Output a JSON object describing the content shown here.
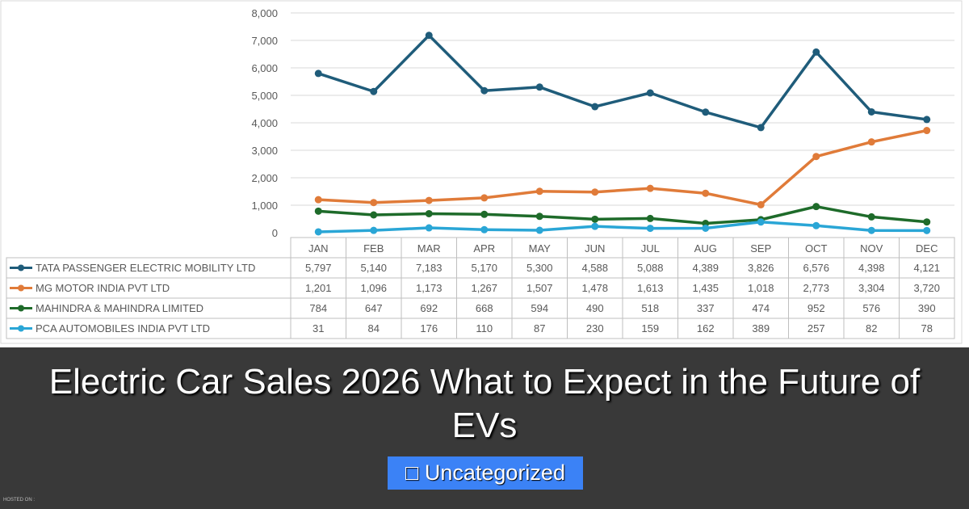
{
  "chart_data": {
    "type": "line",
    "categories": [
      "JAN",
      "FEB",
      "MAR",
      "APR",
      "MAY",
      "JUN",
      "JUL",
      "AUG",
      "SEP",
      "OCT",
      "NOV",
      "DEC"
    ],
    "ylim": [
      0,
      8000
    ],
    "yticks": [
      "0",
      "1,000",
      "2,000",
      "3,000",
      "4,000",
      "5,000",
      "6,000",
      "7,000",
      "8,000"
    ],
    "grid": true,
    "legend": "data-table-below",
    "series": [
      {
        "name": "TATA PASSENGER ELECTRIC MOBILITY LTD",
        "color": "#1f5c7a",
        "values": [
          5797,
          5140,
          7183,
          5170,
          5300,
          4588,
          5088,
          4389,
          3826,
          6576,
          4398,
          4121
        ],
        "labels": [
          "5,797",
          "5,140",
          "7,183",
          "5,170",
          "5,300",
          "4,588",
          "5,088",
          "4,389",
          "3,826",
          "6,576",
          "4,398",
          "4,121"
        ]
      },
      {
        "name": "MG MOTOR INDIA PVT LTD",
        "color": "#e07b39",
        "values": [
          1201,
          1096,
          1173,
          1267,
          1507,
          1478,
          1613,
          1435,
          1018,
          2773,
          3304,
          3720
        ],
        "labels": [
          "1,201",
          "1,096",
          "1,173",
          "1,267",
          "1,507",
          "1,478",
          "1,613",
          "1,435",
          "1,018",
          "2,773",
          "3,304",
          "3,720"
        ]
      },
      {
        "name": "MAHINDRA & MAHINDRA LIMITED",
        "color": "#1e6b2a",
        "values": [
          784,
          647,
          692,
          668,
          594,
          490,
          518,
          337,
          474,
          952,
          576,
          390
        ],
        "labels": [
          "784",
          "647",
          "692",
          "668",
          "594",
          "490",
          "518",
          "337",
          "474",
          "952",
          "576",
          "390"
        ]
      },
      {
        "name": "PCA AUTOMOBILES INDIA PVT LTD",
        "color": "#2aa6d6",
        "values": [
          31,
          84,
          176,
          110,
          87,
          230,
          159,
          162,
          389,
          257,
          82,
          78
        ],
        "labels": [
          "31",
          "84",
          "176",
          "110",
          "87",
          "230",
          "159",
          "162",
          "389",
          "257",
          "82",
          "78"
        ]
      }
    ]
  },
  "post": {
    "title": "Electric Car Sales 2026 What to Expect in the Future of EVs",
    "category_icon": "folder-icon",
    "category_glyph": "□",
    "category": "Uncategorized",
    "hosted_label": "HOSTED ON :"
  }
}
